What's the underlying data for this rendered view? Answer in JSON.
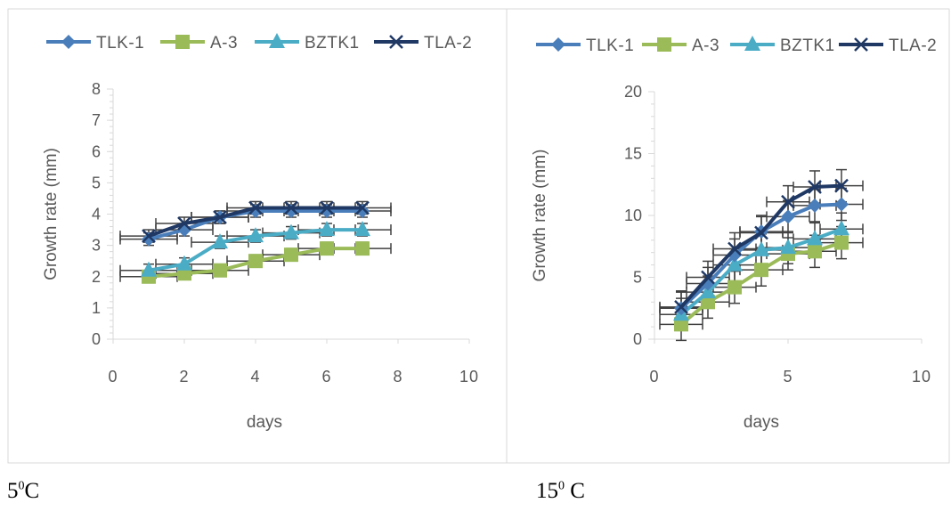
{
  "captions": [
    {
      "base": "5",
      "sup": "0",
      "rest": "C"
    },
    {
      "base": "15",
      "sup": "0",
      "rest": " C"
    }
  ],
  "colors": {
    "TLK-1": "#4a7ebb",
    "A-3": "#9bbb59",
    "BZTK1": "#4bacc6",
    "TLA-2": "#1f3864",
    "error_bar": "#404040",
    "axis": "#d9d9d9",
    "frame": "#d9d9d9",
    "text": "#595959"
  },
  "chart_data": [
    {
      "type": "scatter",
      "title": "",
      "xlabel": "days",
      "ylabel": "Growth rate (mm)",
      "xlim": [
        0,
        10
      ],
      "ylim": [
        0,
        8
      ],
      "xticks": [
        0,
        2,
        4,
        6,
        8,
        10
      ],
      "yticks": [
        0,
        1,
        2,
        3,
        4,
        5,
        6,
        7,
        8
      ],
      "legend": "top",
      "grid": false,
      "series": [
        {
          "name": "TLK-1",
          "marker": "diamond",
          "x": [
            1,
            2,
            3,
            4,
            5,
            6,
            7
          ],
          "y": [
            3.2,
            3.5,
            3.9,
            4.1,
            4.1,
            4.1,
            4.1
          ]
        },
        {
          "name": "A-3",
          "marker": "square",
          "x": [
            1,
            2,
            3,
            4,
            5,
            6,
            7
          ],
          "y": [
            2.0,
            2.1,
            2.2,
            2.5,
            2.7,
            2.9,
            2.9
          ]
        },
        {
          "name": "BZTK1",
          "marker": "triangle",
          "x": [
            1,
            2,
            3,
            4,
            5,
            6,
            7
          ],
          "y": [
            2.2,
            2.4,
            3.1,
            3.3,
            3.4,
            3.5,
            3.5
          ]
        },
        {
          "name": "TLA-2",
          "marker": "x",
          "x": [
            1,
            2,
            3,
            4,
            5,
            6,
            7
          ],
          "y": [
            3.3,
            3.7,
            3.9,
            4.2,
            4.2,
            4.2,
            4.2
          ]
        }
      ],
      "error_bars": {
        "x_err": 0.8,
        "y_err": 0.2
      }
    },
    {
      "type": "scatter",
      "title": "",
      "xlabel": "days",
      "ylabel": "Growth rate (mm)",
      "xlim": [
        0,
        10
      ],
      "ylim": [
        0,
        20
      ],
      "xticks": [
        0,
        5,
        10
      ],
      "yticks": [
        0,
        5,
        10,
        15,
        20
      ],
      "legend": "top",
      "grid": false,
      "series": [
        {
          "name": "TLK-1",
          "marker": "diamond",
          "x": [
            1,
            2,
            3,
            4,
            5,
            6,
            7
          ],
          "y": [
            2.5,
            4.5,
            6.8,
            8.7,
            9.9,
            10.8,
            10.9
          ]
        },
        {
          "name": "A-3",
          "marker": "square",
          "x": [
            1,
            2,
            3,
            4,
            5,
            6,
            7
          ],
          "y": [
            1.2,
            3.0,
            4.2,
            5.6,
            6.9,
            7.1,
            7.8
          ]
        },
        {
          "name": "BZTK1",
          "marker": "triangle",
          "x": [
            1,
            2,
            3,
            4,
            5,
            6,
            7
          ],
          "y": [
            2.0,
            3.8,
            6.0,
            7.2,
            7.4,
            8.1,
            8.9
          ]
        },
        {
          "name": "TLA-2",
          "marker": "x",
          "x": [
            1,
            2,
            3,
            4,
            5,
            6,
            7
          ],
          "y": [
            2.6,
            5.0,
            7.3,
            8.6,
            11.1,
            12.3,
            12.4
          ]
        }
      ],
      "error_bars": {
        "x_err": 0.8,
        "y_err": 1.3
      }
    }
  ]
}
